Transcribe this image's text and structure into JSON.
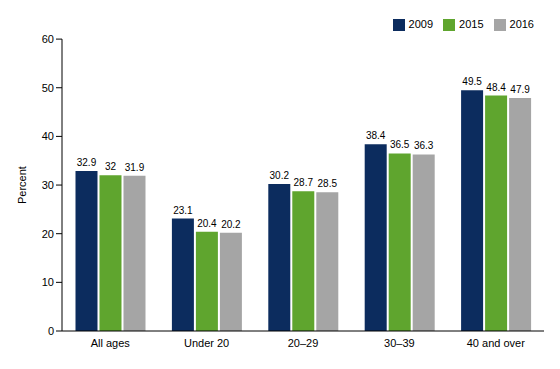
{
  "chart_data": {
    "type": "bar",
    "categories": [
      "All ages",
      "Under 20",
      "20–29",
      "30–39",
      "40 and over"
    ],
    "series": [
      {
        "name": "2009",
        "color": "#0c2c5e",
        "values": [
          32.9,
          23.1,
          30.2,
          38.4,
          49.5
        ]
      },
      {
        "name": "2015",
        "color": "#5fa52e",
        "values": [
          32.0,
          20.4,
          28.7,
          36.5,
          48.4
        ]
      },
      {
        "name": "2016",
        "color": "#a5a5a5",
        "values": [
          31.9,
          20.2,
          28.5,
          36.3,
          47.9
        ]
      }
    ],
    "y_label": "Percent",
    "ylim": [
      0,
      60
    ],
    "yticks": [
      0,
      10,
      20,
      30,
      40,
      50,
      60
    ],
    "grid": false,
    "legend": "top-right",
    "data_labels": true
  }
}
